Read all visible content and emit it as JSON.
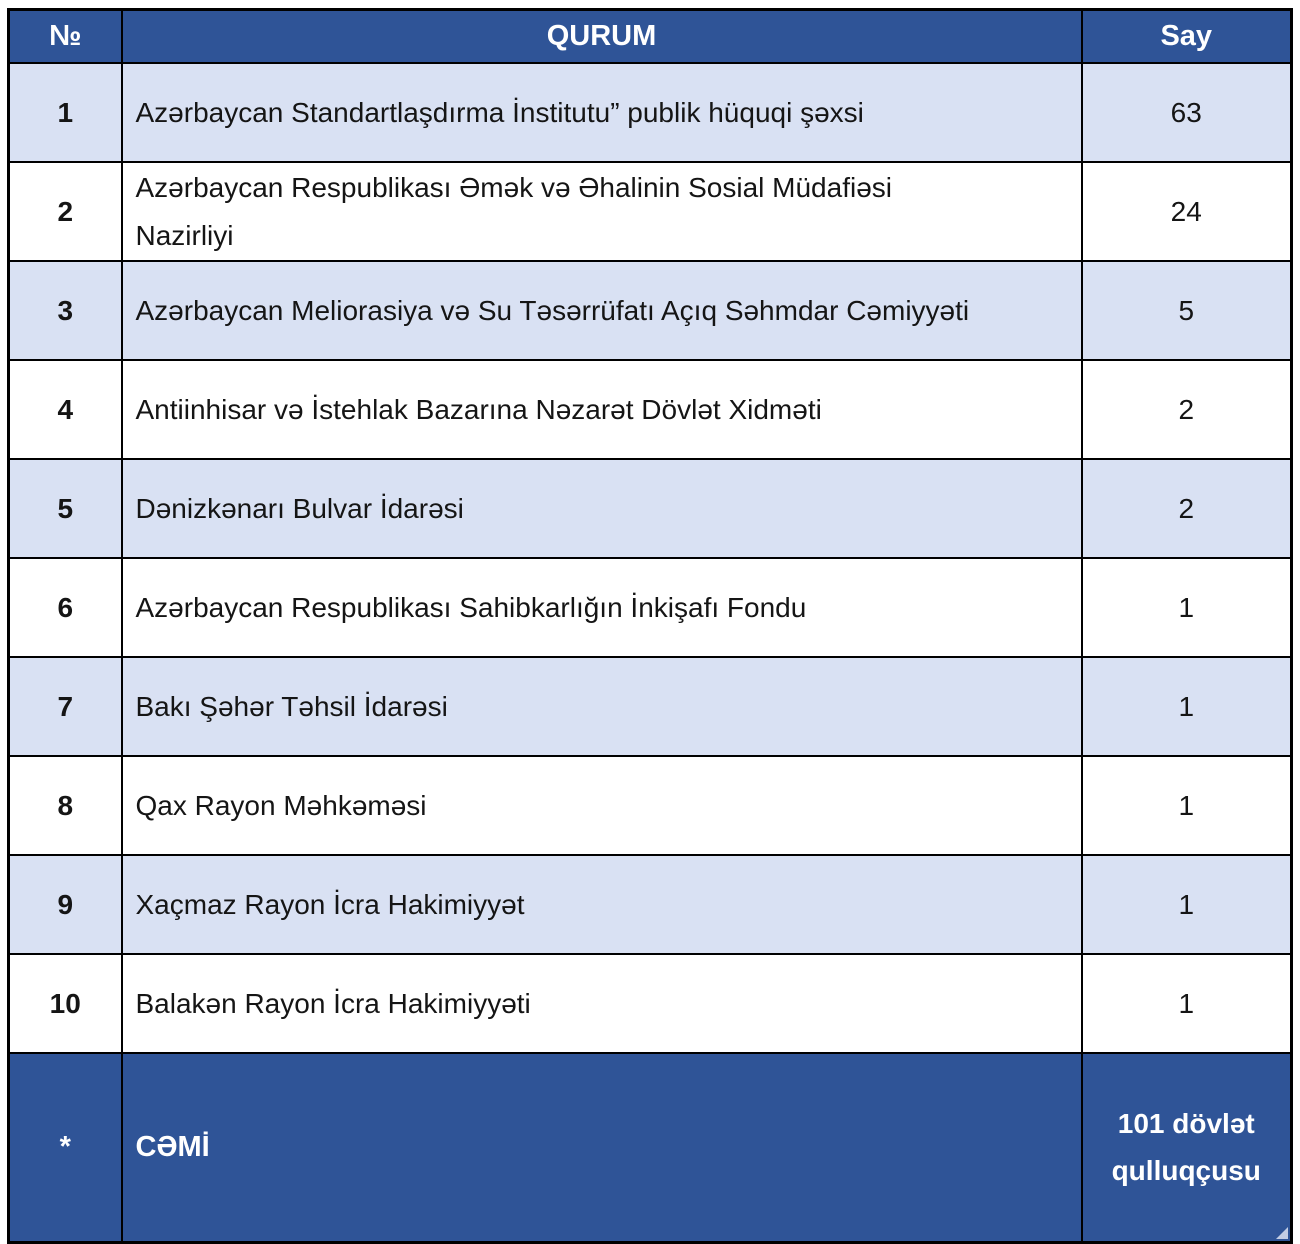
{
  "table": {
    "headers": {
      "no": "№",
      "qurum": "QURUM",
      "say": "Say"
    },
    "rows": [
      {
        "no": "1",
        "qurum": "Azərbaycan Standartlaşdırma İnstitutu” publik hüquqi şəxsi",
        "say": "63"
      },
      {
        "no": "2",
        "qurum": "Azərbaycan Respublikası Əmək və Əhalinin Sosial Müdafiəsi\nNazirliyi",
        "say": "24"
      },
      {
        "no": "3",
        "qurum": "Azərbaycan Meliorasiya və Su Təsərrüfatı Açıq Səhmdar Cəmiyyəti",
        "say": "5"
      },
      {
        "no": "4",
        "qurum": "Antiinhisar və İstehlak Bazarına Nəzarət Dövlət Xidməti",
        "say": "2"
      },
      {
        "no": "5",
        "qurum": "Dənizkənarı Bulvar İdarəsi",
        "say": "2"
      },
      {
        "no": "6",
        "qurum": "Azərbaycan Respublikası Sahibkarlığın İnkişafı Fondu",
        "say": "1"
      },
      {
        "no": "7",
        "qurum": "Bakı Şəhər Təhsil İdarəsi",
        "say": "1"
      },
      {
        "no": "8",
        "qurum": "Qax Rayon Məhkəməsi",
        "say": "1"
      },
      {
        "no": "9",
        "qurum": "Xaçmaz Rayon İcra Hakimiyyət",
        "say": "1"
      },
      {
        "no": "10",
        "qurum": "Balakən Rayon İcra Hakimiyyəti",
        "say": "1"
      }
    ],
    "footer": {
      "no": "*",
      "qurum": "CƏMİ",
      "say": "101 dövlət\nqulluqçusu"
    }
  },
  "colors": {
    "header_bg": "#2F5497",
    "footer_bg": "#2F5497",
    "row_alt_bg": "#D9E1F3",
    "row_bg": "#FFFFFF",
    "border": "#000000",
    "header_text": "#FFFFFF",
    "body_text": "#151515"
  }
}
